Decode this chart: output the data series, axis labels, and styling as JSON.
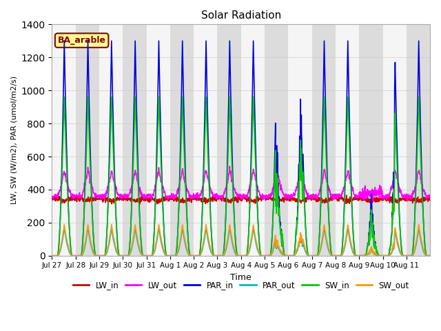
{
  "title": "Solar Radiation",
  "ylabel": "LW, SW (W/m2), PAR (umol/m2/s)",
  "xlabel": "Time",
  "annotation_text": "BA_arable",
  "annotation_color": "#8B0000",
  "annotation_bg": "#FFFF99",
  "ylim": [
    0,
    1400
  ],
  "yticks": [
    0,
    200,
    400,
    600,
    800,
    1000,
    1200,
    1400
  ],
  "n_days": 16,
  "dt": 0.25,
  "lines": {
    "LW_in": {
      "color": "#CC0000",
      "lw": 1.2
    },
    "LW_out": {
      "color": "#FF00FF",
      "lw": 1.2
    },
    "PAR_in": {
      "color": "#0000DD",
      "lw": 1.2
    },
    "PAR_out": {
      "color": "#00BBBB",
      "lw": 1.2
    },
    "SW_in": {
      "color": "#00CC00",
      "lw": 1.2
    },
    "SW_out": {
      "color": "#FF9900",
      "lw": 1.2
    }
  },
  "xtick_labels": [
    "Jul 27",
    "Jul 28",
    "Jul 29",
    "Jul 30",
    "Jul 31",
    "Aug 1",
    "Aug 2",
    "Aug 3",
    "Aug 4",
    "Aug 5",
    "Aug 6",
    "Aug 7",
    "Aug 8",
    "Aug 9",
    "Aug 10",
    "Aug 11"
  ],
  "grid_color": "#CCCCCC",
  "bg_color": "#EFEFEF",
  "band_color_light": "#F5F5F5",
  "band_color_dark": "#DCDCDC",
  "fig_bg": "#FFFFFF"
}
